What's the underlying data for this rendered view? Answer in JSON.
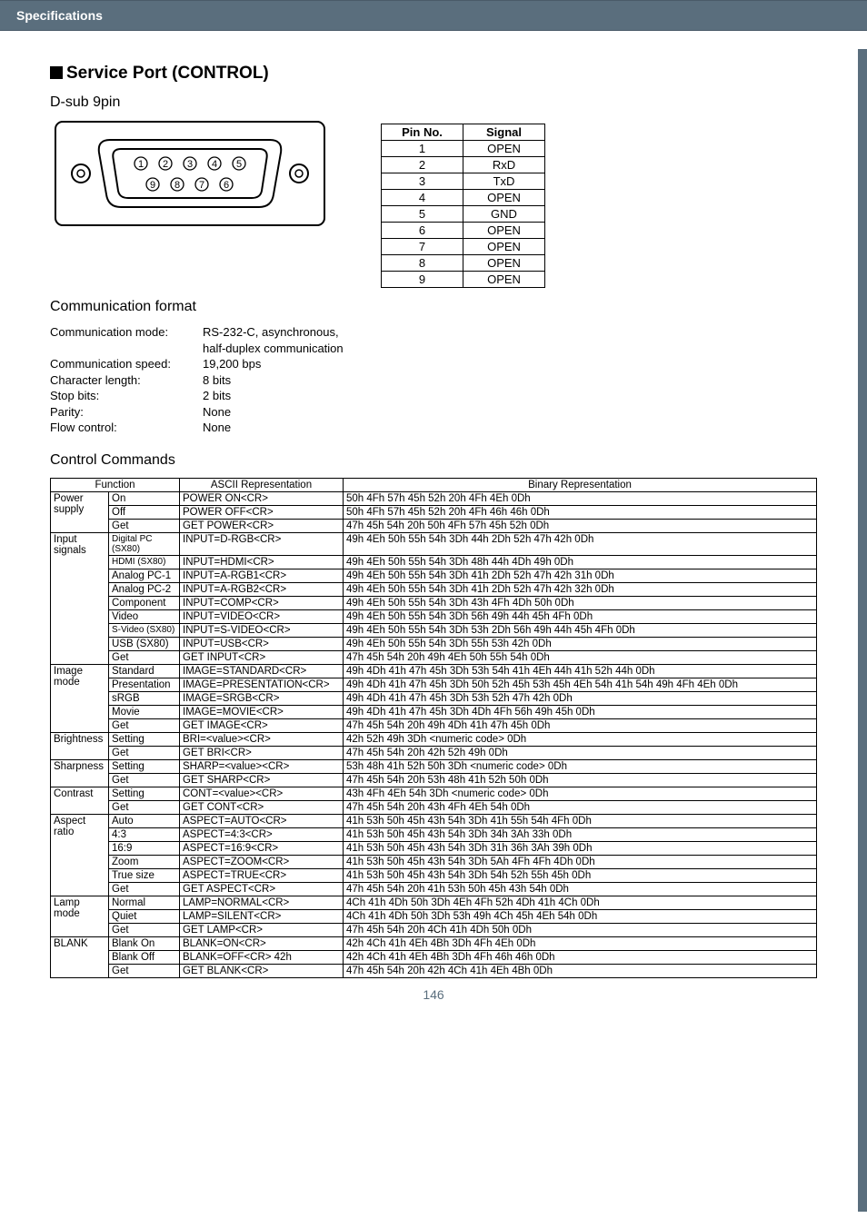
{
  "header": {
    "section": "Specifications"
  },
  "title": "Service Port (CONTROL)",
  "subtitle_connector": "D-sub 9pin",
  "connector": {
    "outer_stroke": "#000000",
    "fill": "#ffffff",
    "pin_labels_top": [
      "①",
      "②",
      "③",
      "④",
      "⑤"
    ],
    "pin_labels_bottom": [
      "⑨",
      "⑧",
      "⑦",
      "⑥"
    ]
  },
  "pin_table": {
    "headers": [
      "Pin No.",
      "Signal"
    ],
    "rows": [
      [
        "1",
        "OPEN"
      ],
      [
        "2",
        "RxD"
      ],
      [
        "3",
        "TxD"
      ],
      [
        "4",
        "OPEN"
      ],
      [
        "5",
        "GND"
      ],
      [
        "6",
        "OPEN"
      ],
      [
        "7",
        "OPEN"
      ],
      [
        "8",
        "OPEN"
      ],
      [
        "9",
        "OPEN"
      ]
    ]
  },
  "comm_heading": "Communication format",
  "comm": {
    "mode_label": "Communication mode:",
    "mode_value": "RS-232-C, asynchronous,",
    "mode_value2": "half-duplex communication",
    "speed_label": "Communication speed:",
    "speed_value": "19,200 bps",
    "charlen_label": "Character length:",
    "charlen_value": "8 bits",
    "stopbits_label": "Stop bits:",
    "stopbits_value": "2 bits",
    "parity_label": "Parity:",
    "parity_value": "None",
    "flow_label": "Flow control:",
    "flow_value": "None"
  },
  "cmd_heading": "Control Commands",
  "cmd_headers": [
    "Function",
    "ASCII Representation",
    "Binary Representation"
  ],
  "groups": [
    {
      "name": "Power supply",
      "rows": [
        {
          "sub": "On",
          "ascii": "POWER ON<CR>",
          "bin": "50h 4Fh 57h 45h 52h 20h 4Fh 4Eh 0Dh"
        },
        {
          "sub": "Off",
          "ascii": "POWER OFF<CR>",
          "bin": "50h 4Fh 57h 45h 52h 20h 4Fh 46h 46h 0Dh"
        },
        {
          "sub": "Get",
          "ascii": "GET POWER<CR>",
          "bin": "47h 45h 54h 20h 50h 4Fh 57h 45h 52h 0Dh"
        }
      ]
    },
    {
      "name": "Input signals",
      "rows": [
        {
          "sub": "Digital PC (SX80)",
          "ascii": "INPUT=D-RGB<CR>",
          "bin": "49h 4Eh 50h 55h 54h 3Dh 44h 2Dh 52h 47h 42h 0Dh",
          "small": true
        },
        {
          "sub": "HDMI (SX80)",
          "ascii": "INPUT=HDMI<CR>",
          "bin": "49h 4Eh 50h 55h 54h 3Dh 48h 44h 4Dh 49h 0Dh",
          "small": true
        },
        {
          "sub": "Analog PC-1",
          "ascii": "INPUT=A-RGB1<CR>",
          "bin": "49h 4Eh 50h 55h 54h 3Dh 41h 2Dh 52h 47h 42h 31h 0Dh"
        },
        {
          "sub": "Analog PC-2",
          "ascii": "INPUT=A-RGB2<CR>",
          "bin": "49h 4Eh 50h 55h 54h 3Dh 41h 2Dh 52h 47h 42h 32h 0Dh"
        },
        {
          "sub": "Component",
          "ascii": "INPUT=COMP<CR>",
          "bin": "49h 4Eh 50h 55h 54h 3Dh 43h 4Fh 4Dh 50h 0Dh"
        },
        {
          "sub": "Video",
          "ascii": "INPUT=VIDEO<CR>",
          "bin": "49h 4Eh 50h 55h 54h 3Dh 56h 49h 44h 45h 4Fh 0Dh"
        },
        {
          "sub": "S-Video (SX80)",
          "ascii": "INPUT=S-VIDEO<CR>",
          "bin": "49h 4Eh 50h 55h 54h 3Dh 53h 2Dh 56h 49h 44h 45h 4Fh 0Dh",
          "small": true
        },
        {
          "sub": "USB (SX80)",
          "ascii": "INPUT=USB<CR>",
          "bin": "49h 4Eh 50h 55h 54h 3Dh 55h 53h 42h 0Dh"
        },
        {
          "sub": "Get",
          "ascii": "GET INPUT<CR>",
          "bin": "47h 45h 54h 20h 49h 4Eh 50h 55h 54h 0Dh"
        }
      ]
    },
    {
      "name": "Image mode",
      "rows": [
        {
          "sub": "Standard",
          "ascii": "IMAGE=STANDARD<CR>",
          "bin": "49h 4Dh 41h 47h 45h 3Dh 53h 54h 41h 4Eh 44h 41h 52h 44h 0Dh"
        },
        {
          "sub": "Presentation",
          "ascii": "IMAGE=PRESENTATION<CR>",
          "bin": "49h 4Dh 41h 47h 45h 3Dh 50h 52h 45h 53h 45h 4Eh 54h 41h 54h 49h 4Fh 4Eh 0Dh"
        },
        {
          "sub": "sRGB",
          "ascii": "IMAGE=SRGB<CR>",
          "bin": "49h 4Dh 41h 47h 45h 3Dh 53h 52h 47h 42h 0Dh"
        },
        {
          "sub": "Movie",
          "ascii": "IMAGE=MOVIE<CR>",
          "bin": "49h 4Dh 41h 47h 45h 3Dh 4Dh 4Fh 56h 49h 45h 0Dh"
        },
        {
          "sub": "Get",
          "ascii": "GET IMAGE<CR>",
          "bin": "47h 45h 54h 20h 49h 4Dh 41h 47h 45h 0Dh"
        }
      ]
    },
    {
      "name": "Brightness",
      "rows": [
        {
          "sub": "Setting",
          "ascii": "BRI=<value><CR>",
          "bin": "42h 52h 49h 3Dh <numeric code> 0Dh"
        },
        {
          "sub": "Get",
          "ascii": "GET BRI<CR>",
          "bin": "47h 45h 54h 20h 42h 52h 49h 0Dh"
        }
      ]
    },
    {
      "name": "Sharpness",
      "rows": [
        {
          "sub": "Setting",
          "ascii": "SHARP=<value><CR>",
          "bin": "53h 48h 41h 52h 50h 3Dh <numeric code> 0Dh"
        },
        {
          "sub": "Get",
          "ascii": "GET SHARP<CR>",
          "bin": "47h 45h 54h 20h 53h 48h 41h 52h 50h 0Dh"
        }
      ]
    },
    {
      "name": "Contrast",
      "rows": [
        {
          "sub": "Setting",
          "ascii": "CONT=<value><CR>",
          "bin": "43h 4Fh 4Eh 54h 3Dh <numeric code> 0Dh"
        },
        {
          "sub": "Get",
          "ascii": "GET CONT<CR>",
          "bin": "47h 45h 54h 20h 43h 4Fh 4Eh 54h 0Dh"
        }
      ]
    },
    {
      "name": "Aspect ratio",
      "rows": [
        {
          "sub": "Auto",
          "ascii": "ASPECT=AUTO<CR>",
          "bin": "41h 53h 50h 45h 43h 54h 3Dh 41h 55h 54h 4Fh 0Dh"
        },
        {
          "sub": "4:3",
          "ascii": "ASPECT=4:3<CR>",
          "bin": "41h 53h 50h 45h 43h 54h 3Dh 34h 3Ah 33h 0Dh"
        },
        {
          "sub": "16:9",
          "ascii": "ASPECT=16:9<CR>",
          "bin": "41h 53h 50h 45h 43h 54h 3Dh 31h 36h 3Ah 39h 0Dh"
        },
        {
          "sub": "Zoom",
          "ascii": "ASPECT=ZOOM<CR>",
          "bin": "41h 53h 50h 45h 43h 54h 3Dh 5Ah 4Fh 4Fh 4Dh 0Dh"
        },
        {
          "sub": "True size",
          "ascii": "ASPECT=TRUE<CR>",
          "bin": "41h 53h 50h 45h 43h 54h 3Dh 54h 52h 55h 45h 0Dh"
        },
        {
          "sub": "Get",
          "ascii": "GET ASPECT<CR>",
          "bin": "47h 45h 54h 20h 41h 53h 50h 45h 43h 54h 0Dh"
        }
      ]
    },
    {
      "name": "Lamp mode",
      "rows": [
        {
          "sub": "Normal",
          "ascii": "LAMP=NORMAL<CR>",
          "bin": "4Ch 41h 4Dh 50h 3Dh 4Eh 4Fh 52h 4Dh 41h 4Ch 0Dh"
        },
        {
          "sub": "Quiet",
          "ascii": "LAMP=SILENT<CR>",
          "bin": "4Ch 41h 4Dh 50h 3Dh 53h 49h 4Ch 45h 4Eh 54h 0Dh"
        },
        {
          "sub": "Get",
          "ascii": "GET LAMP<CR>",
          "bin": "47h 45h 54h 20h 4Ch 41h 4Dh 50h 0Dh"
        }
      ]
    },
    {
      "name": "BLANK",
      "rows": [
        {
          "sub": "Blank On",
          "ascii": "BLANK=ON<CR>",
          "bin": "42h 4Ch 41h 4Eh 4Bh 3Dh 4Fh 4Eh 0Dh"
        },
        {
          "sub": "Blank Off",
          "ascii": "BLANK=OFF<CR> 42h",
          "bin": "42h 4Ch 41h 4Eh 4Bh 3Dh 4Fh 46h 46h 0Dh"
        },
        {
          "sub": "Get",
          "ascii": "GET BLANK<CR>",
          "bin": "47h 45h 54h 20h 42h 4Ch 41h 4Eh 4Bh 0Dh"
        }
      ]
    }
  ],
  "page_number": "146",
  "colors": {
    "header_bg": "#5a6e7d",
    "header_text": "#ffffff",
    "border": "#000000",
    "page_bg": "#ffffff"
  }
}
